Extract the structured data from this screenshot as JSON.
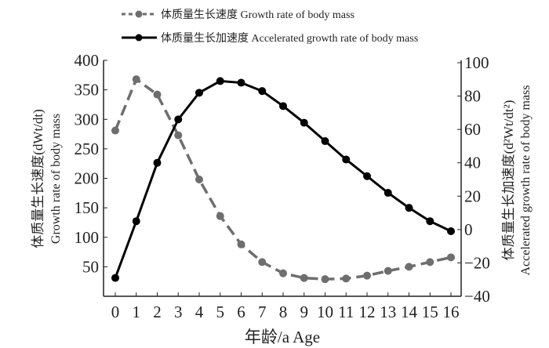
{
  "chart_data": {
    "type": "line",
    "x": [
      0,
      1,
      2,
      3,
      4,
      5,
      6,
      7,
      8,
      9,
      10,
      11,
      12,
      13,
      14,
      15,
      16
    ],
    "xlabel": "年龄/a Age",
    "ylabel_left": [
      "体质量生长速度(dWt/dt)",
      "Growth rate of body mass"
    ],
    "ylabel_right": [
      "体质量生长加速度(d²Wt/dt²)",
      "Accelerated growth rate of body mass"
    ],
    "ylim_left": [
      0,
      400
    ],
    "ylim_right": [
      -40,
      100
    ],
    "yticks_left": [
      50,
      100,
      150,
      200,
      250,
      300,
      350,
      400
    ],
    "yticks_right": [
      -40,
      -20,
      0,
      20,
      40,
      60,
      80,
      100
    ],
    "grid": false,
    "legend_position": "top",
    "series": [
      {
        "name": "体质量生长速度 Growth rate of body mass",
        "axis": "left",
        "style": "dashed",
        "color": "#6e6e6e",
        "values": [
          281,
          368,
          342,
          273,
          198,
          136,
          88,
          58,
          39,
          31,
          29,
          30,
          35,
          43,
          50,
          58,
          66
        ]
      },
      {
        "name": "体质量生长加速度 Accelerated growth rate of body mass",
        "axis": "right",
        "style": "solid",
        "color": "#000000",
        "values": [
          -29,
          5,
          40,
          66,
          82,
          89,
          88,
          83,
          74,
          64,
          53,
          42,
          32,
          22,
          13,
          5,
          -1
        ]
      }
    ]
  }
}
